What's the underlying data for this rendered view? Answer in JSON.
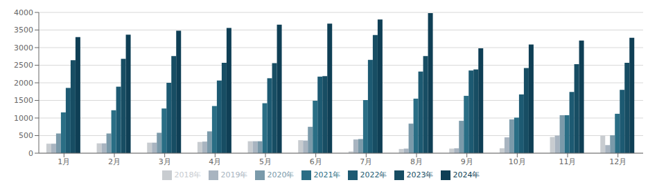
{
  "chart_data": {
    "type": "bar",
    "categories": [
      "1月",
      "2月",
      "3月",
      "4月",
      "5月",
      "6月",
      "7月",
      "8月",
      "9月",
      "10月",
      "11月",
      "12月"
    ],
    "series": [
      {
        "name": "2018年",
        "color": "#c8ccd0",
        "values": [
          270,
          280,
          300,
          320,
          340,
          370,
          50,
          120,
          130,
          140,
          460,
          500
        ]
      },
      {
        "name": "2019年",
        "color": "#a8b4c0",
        "values": [
          270,
          280,
          300,
          330,
          340,
          360,
          390,
          130,
          140,
          450,
          500,
          230
        ]
      },
      {
        "name": "2020年",
        "color": "#7a9aaa",
        "values": [
          560,
          560,
          580,
          620,
          340,
          750,
          400,
          840,
          920,
          960,
          1080,
          510
        ]
      },
      {
        "name": "2021年",
        "color": "#2a6e85",
        "values": [
          1160,
          1220,
          1270,
          1340,
          1420,
          1490,
          1510,
          1550,
          1630,
          1010,
          1080,
          1120
        ]
      },
      {
        "name": "2022年",
        "color": "#1d5a72",
        "values": [
          1855,
          1890,
          2000,
          2065,
          2130,
          2175,
          2650,
          2320,
          2350,
          1670,
          1740,
          1800
        ]
      },
      {
        "name": "2023年",
        "color": "#174d63",
        "values": [
          2640,
          2680,
          2760,
          2570,
          2560,
          2190,
          3360,
          2760,
          2380,
          2420,
          2530,
          2570
        ]
      },
      {
        "name": "2024年",
        "color": "#0f3f55",
        "values": [
          3300,
          3370,
          3480,
          3560,
          3650,
          3680,
          3800,
          3980,
          2980,
          3090,
          3200,
          3280
        ]
      }
    ],
    "ylim": [
      0,
      4000
    ],
    "yticks": [
      0,
      500,
      1000,
      1500,
      2000,
      2500,
      3000,
      3500,
      4000
    ],
    "grid": true,
    "legend": "bottom"
  }
}
